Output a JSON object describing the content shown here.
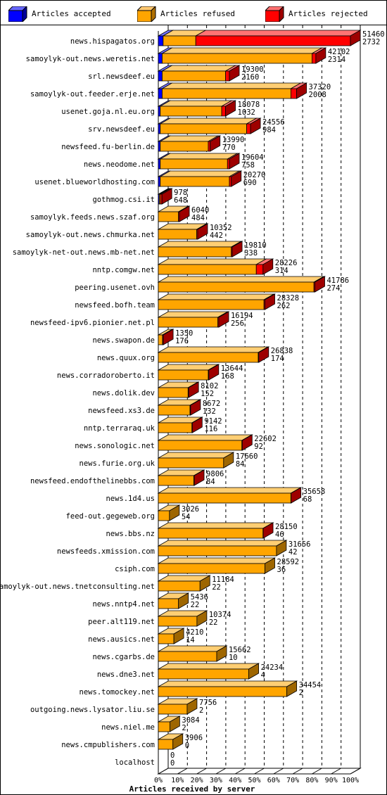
{
  "legend": [
    {
      "label": "Articles accepted",
      "color": "#0000ff",
      "icon": "blue-box-icon"
    },
    {
      "label": "Articles refused",
      "color": "#ffa500",
      "icon": "orange-box-icon"
    },
    {
      "label": "Articles rejected",
      "color": "#ff0000",
      "icon": "red-box-icon"
    }
  ],
  "chart_data": {
    "type": "bar",
    "orientation": "horizontal",
    "stacked": true,
    "xlabel": "Articles received by server",
    "xticks": [
      "0%",
      "10%",
      "20%",
      "30%",
      "40%",
      "50%",
      "60%",
      "70%",
      "80%",
      "90%",
      "100%"
    ],
    "xlim": [
      0,
      100
    ],
    "grid": true,
    "legend_placement": "top",
    "series_colors": {
      "accepted": "#0000ff",
      "refused": "#ffa500",
      "rejected": "#ff0000"
    },
    "rows": [
      {
        "name": "news.hispagatos.org",
        "total": "51460",
        "second": "2732",
        "accepted": 2.5,
        "refused": 17.0,
        "rejected": 80.5
      },
      {
        "name": "samoylyk-out.news.weretis.net",
        "total": "42102",
        "second": "2314",
        "accepted": 2.0,
        "refused": 78.0,
        "rejected": 2.0
      },
      {
        "name": "srl.newsdeef.eu",
        "total": "19300",
        "second": "2160",
        "accepted": 2.0,
        "refused": 33.0,
        "rejected": 2.0
      },
      {
        "name": "samoylyk-out.feeder.erje.net",
        "total": "37320",
        "second": "2008",
        "accepted": 2.0,
        "refused": 67.0,
        "rejected": 3.0
      },
      {
        "name": "usenet.goja.nl.eu.org",
        "total": "18078",
        "second": "1032",
        "accepted": 1.0,
        "refused": 32.0,
        "rejected": 2.0
      },
      {
        "name": "srv.newsdeef.eu",
        "total": "24556",
        "second": "984",
        "accepted": 1.0,
        "refused": 45.0,
        "rejected": 2.0
      },
      {
        "name": "newsfeed.fu-berlin.de",
        "total": "13990",
        "second": "770",
        "accepted": 1.0,
        "refused": 25.0,
        "rejected": 1.0
      },
      {
        "name": "news.neodome.net",
        "total": "19604",
        "second": "758",
        "accepted": 1.0,
        "refused": 35.0,
        "rejected": 1.0
      },
      {
        "name": "usenet.blueworldhosting.com",
        "total": "20270",
        "second": "690",
        "accepted": 1.0,
        "refused": 36.0,
        "rejected": 1.0
      },
      {
        "name": "gothmog.csi.it",
        "total": "978",
        "second": "648",
        "accepted": 0.5,
        "refused": 0.6,
        "rejected": 0.8
      },
      {
        "name": "samoylyk.feeds.news.szaf.org",
        "total": "6040",
        "second": "484",
        "accepted": 0,
        "refused": 10.5,
        "rejected": 0.5
      },
      {
        "name": "samoylyk-out.news.chmurka.net",
        "total": "10352",
        "second": "442",
        "accepted": 0,
        "refused": 20.0,
        "rejected": 0.5
      },
      {
        "name": "samoylyk-net-out.news.mb-net.net",
        "total": "19810",
        "second": "338",
        "accepted": 0,
        "refused": 38.0,
        "rejected": 0.5
      },
      {
        "name": "nntp.comgw.net",
        "total": "28226",
        "second": "314",
        "accepted": 0,
        "refused": 51.0,
        "rejected": 3.5
      },
      {
        "name": "peering.usenet.ovh",
        "total": "41786",
        "second": "274",
        "accepted": 0,
        "refused": 81.0,
        "rejected": 0.5
      },
      {
        "name": "newsfeed.bofh.team",
        "total": "28328",
        "second": "262",
        "accepted": 0,
        "refused": 55.0,
        "rejected": 0.5
      },
      {
        "name": "newsfeed-ipv6.pionier.net.pl",
        "total": "16194",
        "second": "256",
        "accepted": 0,
        "refused": 31.0,
        "rejected": 0.5
      },
      {
        "name": "news.swapon.de",
        "total": "1350",
        "second": "176",
        "accepted": 0,
        "refused": 2.2,
        "rejected": 0.4
      },
      {
        "name": "news.quux.org",
        "total": "26838",
        "second": "174",
        "accepted": 0,
        "refused": 52.0,
        "rejected": 0.3
      },
      {
        "name": "news.corradoroberto.it",
        "total": "13644",
        "second": "168",
        "accepted": 0,
        "refused": 26.0,
        "rejected": 0.3
      },
      {
        "name": "news.dolik.dev",
        "total": "8102",
        "second": "152",
        "accepted": 0,
        "refused": 15.5,
        "rejected": 0.3
      },
      {
        "name": "newsfeed.xs3.de",
        "total": "8672",
        "second": "132",
        "accepted": 0,
        "refused": 16.5,
        "rejected": 0.3
      },
      {
        "name": "nntp.terraraq.uk",
        "total": "9142",
        "second": "116",
        "accepted": 0,
        "refused": 17.5,
        "rejected": 0.2
      },
      {
        "name": "news.sonologic.net",
        "total": "22602",
        "second": "92",
        "accepted": 0,
        "refused": 43.5,
        "rejected": 0.2
      },
      {
        "name": "news.furie.org.uk",
        "total": "17660",
        "second": "84",
        "accepted": 0,
        "refused": 34.0,
        "rejected": 0
      },
      {
        "name": "newsfeed.endofthelinebbs.com",
        "total": "9806",
        "second": "84",
        "accepted": 0,
        "refused": 18.5,
        "rejected": 0.2
      },
      {
        "name": "news.1d4.us",
        "total": "35658",
        "second": "68",
        "accepted": 0,
        "refused": 69.0,
        "rejected": 0.1
      },
      {
        "name": "feed-out.gegeweb.org",
        "total": "3026",
        "second": "54",
        "accepted": 0,
        "refused": 5.8,
        "rejected": 0
      },
      {
        "name": "news.bbs.nz",
        "total": "28150",
        "second": "46",
        "accepted": 0,
        "refused": 54.5,
        "rejected": 0.1
      },
      {
        "name": "newsfeeds.xmission.com",
        "total": "31656",
        "second": "42",
        "accepted": 0,
        "refused": 61.5,
        "rejected": 0
      },
      {
        "name": "csiph.com",
        "total": "28592",
        "second": "36",
        "accepted": 0,
        "refused": 55.5,
        "rejected": 0
      },
      {
        "name": "samoylyk-out.news.tnetconsulting.net",
        "total": "11184",
        "second": "22",
        "accepted": 0,
        "refused": 21.7,
        "rejected": 0
      },
      {
        "name": "news.nntp4.net",
        "total": "5436",
        "second": "22",
        "accepted": 0,
        "refused": 10.5,
        "rejected": 0
      },
      {
        "name": "peer.alt119.net",
        "total": "10374",
        "second": "22",
        "accepted": 0,
        "refused": 20.1,
        "rejected": 0
      },
      {
        "name": "news.ausics.net",
        "total": "4210",
        "second": "14",
        "accepted": 0,
        "refused": 8.1,
        "rejected": 0
      },
      {
        "name": "news.cgarbs.de",
        "total": "15662",
        "second": "10",
        "accepted": 0,
        "refused": 30.4,
        "rejected": 0
      },
      {
        "name": "news.dne3.net",
        "total": "24234",
        "second": "4",
        "accepted": 0,
        "refused": 47.1,
        "rejected": 0
      },
      {
        "name": "news.tomockey.net",
        "total": "34454",
        "second": "2",
        "accepted": 0,
        "refused": 66.9,
        "rejected": 0
      },
      {
        "name": "outgoing.news.lysator.liu.se",
        "total": "7756",
        "second": "2",
        "accepted": 0,
        "refused": 15.0,
        "rejected": 0
      },
      {
        "name": "news.niel.me",
        "total": "3084",
        "second": "2",
        "accepted": 0,
        "refused": 6.0,
        "rejected": 0
      },
      {
        "name": "news.cmpublishers.com",
        "total": "3906",
        "second": "0",
        "accepted": 0,
        "refused": 7.6,
        "rejected": 0
      },
      {
        "name": "localhost",
        "total": "0",
        "second": "0",
        "accepted": 0,
        "refused": 0,
        "rejected": 0
      }
    ]
  }
}
